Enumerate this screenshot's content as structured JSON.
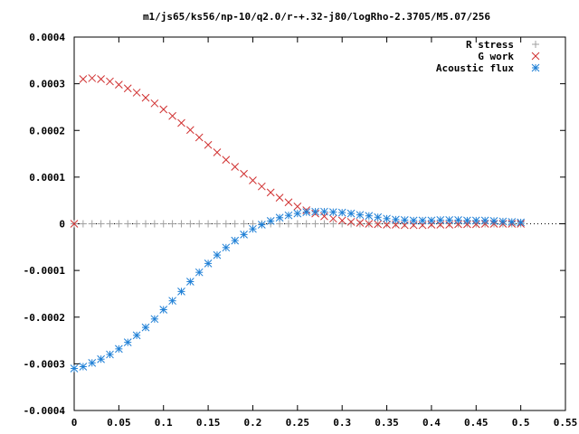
{
  "chart_data": {
    "type": "scatter",
    "title": "m1/js65/ks56/np-10/q2.0/r-+.32-j80/logRho-2.3705/M5.07/256",
    "xlabel": "",
    "ylabel": "",
    "xlim": [
      0,
      0.55
    ],
    "ylim": [
      -0.0004,
      0.0004
    ],
    "x_ticks": [
      "0",
      "0.05",
      "0.1",
      "0.15",
      "0.2",
      "0.25",
      "0.3",
      "0.35",
      "0.4",
      "0.45",
      "0.5",
      "0.55"
    ],
    "x_tick_values": [
      0,
      0.05,
      0.1,
      0.15,
      0.2,
      0.25,
      0.3,
      0.35,
      0.4,
      0.45,
      0.5,
      0.55
    ],
    "y_ticks": [
      "0.0004",
      "0.0003",
      "0.0002",
      "0.0001",
      "0",
      "-0.0001",
      "-0.0002",
      "-0.0003",
      "-0.0004"
    ],
    "y_tick_values": [
      0.0004,
      0.0003,
      0.0002,
      0.0001,
      0,
      -0.0001,
      -0.0002,
      -0.0003,
      -0.0004
    ],
    "grid": false,
    "legend_position": "top-right",
    "series": [
      {
        "name": "R stress",
        "marker": "plus",
        "color": "#a0a0a0",
        "x": [
          0,
          0.01,
          0.02,
          0.03,
          0.04,
          0.05,
          0.06,
          0.07,
          0.08,
          0.09,
          0.1,
          0.11,
          0.12,
          0.13,
          0.14,
          0.15,
          0.16,
          0.17,
          0.18,
          0.19,
          0.2,
          0.21,
          0.22,
          0.23,
          0.24,
          0.25,
          0.26,
          0.27,
          0.28,
          0.29,
          0.3,
          0.31,
          0.32,
          0.33,
          0.34,
          0.35,
          0.36,
          0.37,
          0.38,
          0.39,
          0.4,
          0.41,
          0.42,
          0.43,
          0.44,
          0.45,
          0.46,
          0.47,
          0.48,
          0.49,
          0.5
        ],
        "y": [
          0,
          0,
          0,
          0,
          0,
          0,
          0,
          0,
          0,
          0,
          0,
          0,
          0,
          0,
          0,
          0,
          0,
          0,
          0,
          0,
          0,
          0,
          0,
          0,
          0,
          0,
          0,
          0,
          0,
          0,
          0,
          0,
          0,
          0,
          0,
          0,
          0,
          0,
          0,
          0,
          0,
          0,
          0,
          0,
          0,
          0,
          0,
          0,
          0,
          0,
          0
        ]
      },
      {
        "name": "G work",
        "marker": "cross",
        "color": "#d03030",
        "x": [
          0,
          0.01,
          0.02,
          0.03,
          0.04,
          0.05,
          0.06,
          0.07,
          0.08,
          0.09,
          0.1,
          0.11,
          0.12,
          0.13,
          0.14,
          0.15,
          0.16,
          0.17,
          0.18,
          0.19,
          0.2,
          0.21,
          0.22,
          0.23,
          0.24,
          0.25,
          0.26,
          0.27,
          0.28,
          0.29,
          0.3,
          0.31,
          0.32,
          0.33,
          0.34,
          0.35,
          0.36,
          0.37,
          0.38,
          0.39,
          0.4,
          0.41,
          0.42,
          0.43,
          0.44,
          0.45,
          0.46,
          0.47,
          0.48,
          0.49,
          0.5
        ],
        "y": [
          0,
          0.00031,
          0.000312,
          0.00031,
          0.000305,
          0.000298,
          0.00029,
          0.000281,
          0.00027,
          0.000258,
          0.000245,
          0.000231,
          0.000216,
          0.000201,
          0.000185,
          0.000169,
          0.000153,
          0.000137,
          0.000122,
          0.000107,
          9.3e-05,
          8e-05,
          6.7e-05,
          5.6e-05,
          4.6e-05,
          3.7e-05,
          2.9e-05,
          2.2e-05,
          1.6e-05,
          1.1e-05,
          7e-06,
          4e-06,
          2e-06,
          0,
          -1e-06,
          -2e-06,
          -2e-06,
          -3e-06,
          -3e-06,
          -3e-06,
          -2e-06,
          -2e-06,
          -2e-06,
          -1e-06,
          -1e-06,
          -1e-06,
          0,
          0,
          0,
          0,
          0
        ]
      },
      {
        "name": "Acoustic flux",
        "marker": "star",
        "color": "#1e7fd6",
        "x": [
          0,
          0.01,
          0.02,
          0.03,
          0.04,
          0.05,
          0.06,
          0.07,
          0.08,
          0.09,
          0.1,
          0.11,
          0.12,
          0.13,
          0.14,
          0.15,
          0.16,
          0.17,
          0.18,
          0.19,
          0.2,
          0.21,
          0.22,
          0.23,
          0.24,
          0.25,
          0.26,
          0.27,
          0.28,
          0.29,
          0.3,
          0.31,
          0.32,
          0.33,
          0.34,
          0.35,
          0.36,
          0.37,
          0.38,
          0.39,
          0.4,
          0.41,
          0.42,
          0.43,
          0.44,
          0.45,
          0.46,
          0.47,
          0.48,
          0.49,
          0.5
        ],
        "y": [
          -0.00031,
          -0.000306,
          -0.000298,
          -0.00029,
          -0.00028,
          -0.000268,
          -0.000254,
          -0.000239,
          -0.000222,
          -0.000204,
          -0.000184,
          -0.000165,
          -0.000145,
          -0.000124,
          -0.000104,
          -8.5e-05,
          -6.7e-05,
          -5.1e-05,
          -3.6e-05,
          -2.3e-05,
          -1.1e-05,
          -2e-06,
          6e-06,
          1.3e-05,
          1.8e-05,
          2.2e-05,
          2.5e-05,
          2.6e-05,
          2.6e-05,
          2.5e-05,
          2.4e-05,
          2.2e-05,
          1.9e-05,
          1.7e-05,
          1.4e-05,
          1.1e-05,
          9e-06,
          8e-06,
          7e-06,
          7e-06,
          7e-06,
          8e-06,
          8e-06,
          8e-06,
          7e-06,
          7e-06,
          7e-06,
          6e-06,
          5e-06,
          4e-06,
          3e-06
        ]
      }
    ]
  }
}
